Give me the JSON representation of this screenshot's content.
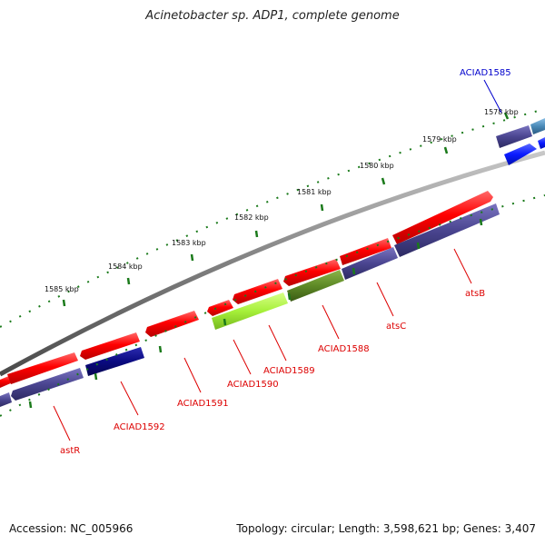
{
  "title": "Acinetobacter sp. ADP1, complete genome",
  "footer": {
    "accession": "Accession: NC_005966",
    "summary": "Topology: circular; Length: 3,598,621 bp; Genes: 3,407"
  },
  "scale_labels": [
    "1578 kbp",
    "1579 kbp",
    "1580 kbp",
    "1581 kbp",
    "1582 kbp",
    "1583 kbp",
    "1584 kbp",
    "1585 kbp"
  ],
  "gene_labels": [
    {
      "text": "ACIAD1585",
      "color": "#0000cc"
    },
    {
      "text": "atsB",
      "color": "#dd0000"
    },
    {
      "text": "atsC",
      "color": "#dd0000"
    },
    {
      "text": "ACIAD1588",
      "color": "#dd0000"
    },
    {
      "text": "ACIAD1589",
      "color": "#dd0000"
    },
    {
      "text": "ACIAD1590",
      "color": "#dd0000"
    },
    {
      "text": "ACIAD1591",
      "color": "#dd0000"
    },
    {
      "text": "ACIAD1592",
      "color": "#dd0000"
    },
    {
      "text": "astR",
      "color": "#dd0000"
    }
  ],
  "colors": {
    "backbone": "#808080",
    "tick": "#1a7a1a",
    "gene_red": "#ff0000",
    "gene_purple": "#4a4590",
    "gene_navy": "#0a0a80",
    "gene_lime": "#a6f03a",
    "gene_olive": "#5e8a26",
    "gene_blue": "#0a1aff",
    "gene_steel": "#4a8ab8"
  }
}
